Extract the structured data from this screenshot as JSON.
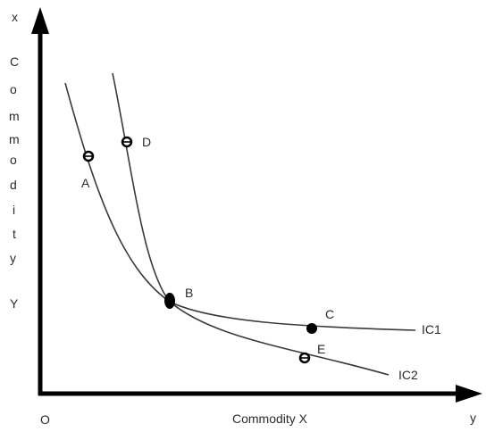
{
  "axes": {
    "origin_label": "O",
    "x_axis_end_label": "y",
    "y_axis_top_label": "x",
    "x_axis_title": "Commodity X",
    "y_axis_title_letters": [
      "C",
      "o",
      "m",
      "m",
      "o",
      "d",
      "i",
      "t",
      "y",
      "",
      "Y"
    ]
  },
  "curves": {
    "ic1_label": "IC1",
    "ic2_label": "IC2"
  },
  "points": {
    "a": "A",
    "b": "B",
    "c": "C",
    "d": "D",
    "e": "E"
  },
  "colors": {
    "axis": "#000000",
    "curve": "#3a3a3a",
    "text": "#2a2a2a",
    "background": "#ffffff"
  }
}
